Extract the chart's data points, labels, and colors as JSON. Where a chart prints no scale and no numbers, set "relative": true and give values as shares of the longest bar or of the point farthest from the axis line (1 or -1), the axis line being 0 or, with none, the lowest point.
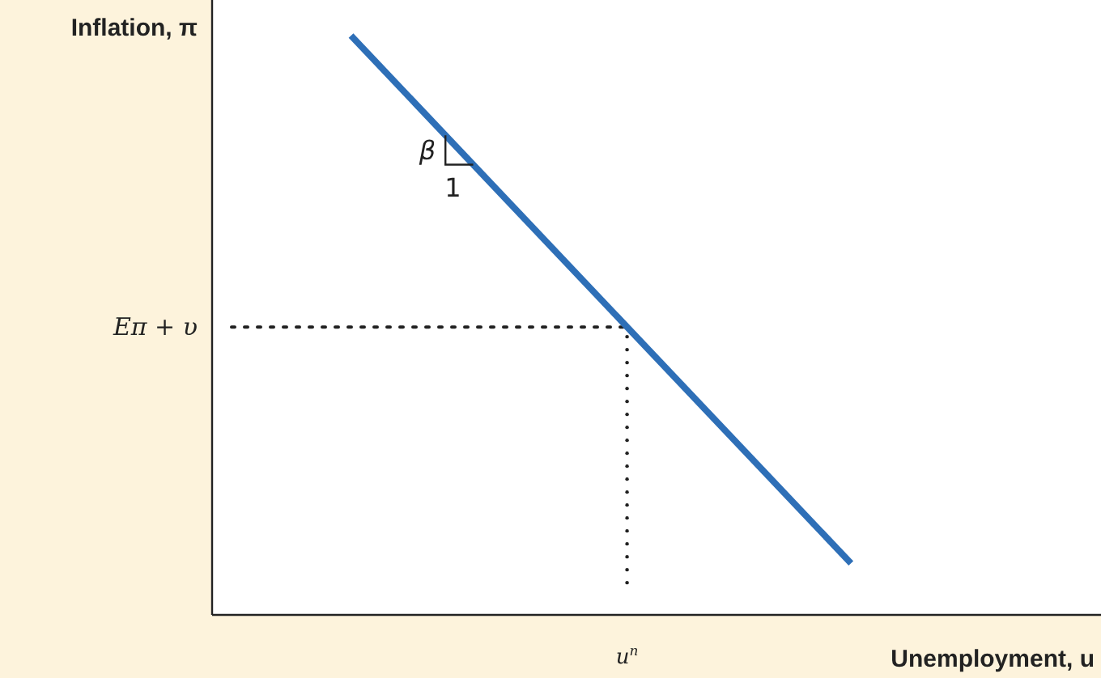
{
  "chart_data": {
    "type": "line",
    "relative": true,
    "xlabel": "Unemployment, u",
    "ylabel": "Inflation, π",
    "categories": [
      null,
      null,
      null,
      null,
      null,
      null,
      null,
      null,
      null,
      null,
      null,
      null,
      null,
      null,
      null,
      null
    ],
    "series": [
      {
        "color": "#2e6fb7",
        "values": [
          null,
          null,
          1,
          null,
          null,
          null,
          null,
          null,
          null,
          null,
          null,
          0.089,
          null,
          null,
          null,
          null
        ]
      }
    ],
    "ref_lines": [
      {
        "axis": "y",
        "value": 0.497,
        "label": "Eπ + υ",
        "line_style": "dotted",
        "color": "#222222"
      }
    ],
    "annotations": [
      "β",
      "1",
      "u$^{n}$"
    ],
    "marker": "none",
    "line_style": "solid"
  }
}
